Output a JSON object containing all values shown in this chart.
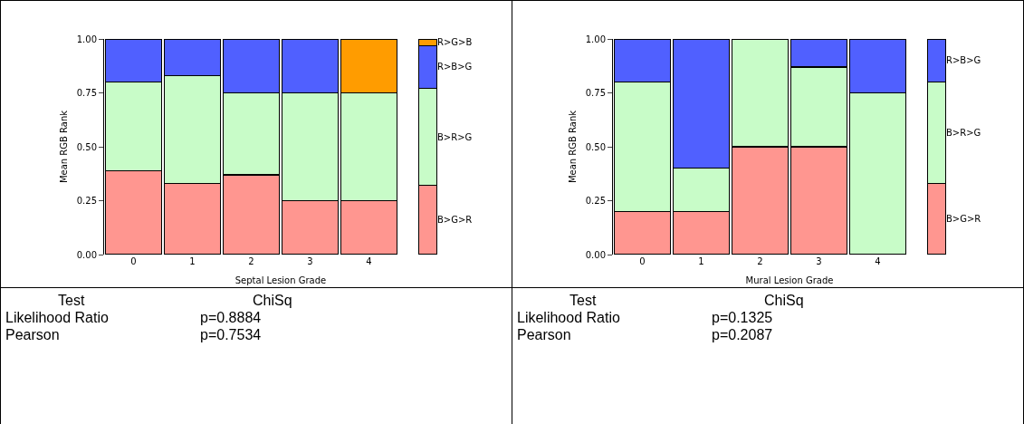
{
  "chart_data": [
    {
      "type": "bar",
      "stacked": true,
      "xlabel": "Septal Lesion Grade",
      "ylabel": "Mean RGB Rank",
      "categories": [
        "0",
        "1",
        "2",
        "3",
        "4",
        null
      ],
      "ylim": [
        0,
        1
      ],
      "yticks": [
        {
          "value": 0,
          "label": "0.00"
        },
        {
          "value": 0.25,
          "label": "0.25"
        },
        {
          "value": 0.5,
          "label": "0.50"
        },
        {
          "value": 0.75,
          "label": "0.75"
        },
        {
          "value": 1,
          "label": "1.00"
        }
      ],
      "series": [
        {
          "name": "B>G>R",
          "color": "#ff9690",
          "values": [
            0.39,
            0.33,
            0.37,
            0.25,
            0.25,
            0.32
          ]
        },
        {
          "name": "B>R>G",
          "color": "#c8fcc8",
          "values": [
            0.41,
            0.5,
            0.38,
            0.5,
            0.5,
            0.45
          ]
        },
        {
          "name": "R>B>G",
          "color": "#5060ff",
          "values": [
            0.2,
            0.17,
            0.25,
            0.25,
            null,
            0.2
          ]
        },
        {
          "name": "R>G>B",
          "color": "#ff9c00",
          "values": [
            null,
            null,
            null,
            null,
            0.25,
            0.03
          ]
        }
      ]
    },
    {
      "type": "other",
      "annotations": [
        "Test",
        "ChiSq",
        "Likelihood Ratio",
        "p=0.8884",
        "Pearson",
        "p=0.7534"
      ]
    },
    {
      "type": "bar",
      "stacked": true,
      "xlabel": "Mural Lesion Grade",
      "ylabel": "Mean RGB Rank",
      "categories": [
        "0",
        "1",
        "2",
        "3",
        "4",
        null
      ],
      "ylim": [
        0,
        1
      ],
      "yticks": [
        {
          "value": 0,
          "label": "0.00"
        },
        {
          "value": 0.25,
          "label": "0.25"
        },
        {
          "value": 0.5,
          "label": "0.50"
        },
        {
          "value": 0.75,
          "label": "0.75"
        },
        {
          "value": 1,
          "label": "1.00"
        }
      ],
      "series": [
        {
          "name": "B>G>R",
          "color": "#ff9690",
          "values": [
            0.2,
            0.2,
            0.5,
            0.5,
            null,
            0.33
          ]
        },
        {
          "name": "B>R>G",
          "color": "#c8fcc8",
          "values": [
            0.6,
            0.2,
            0.5,
            0.37,
            0.75,
            0.47
          ]
        },
        {
          "name": "R>B>G",
          "color": "#5060ff",
          "values": [
            0.2,
            0.6,
            null,
            0.13,
            0.25,
            0.2
          ]
        }
      ]
    },
    {
      "type": "other",
      "annotations": [
        "Test",
        "ChiSq",
        "Likelihood Ratio",
        "p=0.1325",
        "Pearson",
        "p=0.2087"
      ]
    }
  ]
}
